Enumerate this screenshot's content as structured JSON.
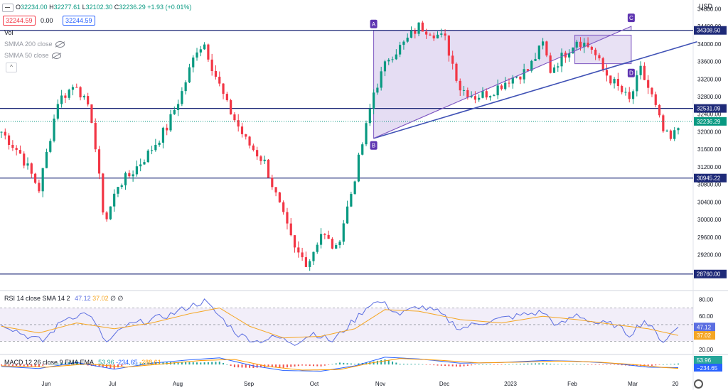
{
  "header": {
    "ohlc_prefix_o": "O",
    "open": "32234.00",
    "ohlc_prefix_h": "H",
    "high": "32277.61",
    "ohlc_prefix_l": "L",
    "low": "32102.30",
    "ohlc_prefix_c": "C",
    "close": "32236.29",
    "change": "+1.93 (+0.01%)",
    "bid": "32244.59",
    "spread": "0.00",
    "ask": "32244.59",
    "currency": "USD"
  },
  "legend": {
    "vol": "Vol",
    "sma200": "SMMA 200 close",
    "sma50": "SMMA 50 close",
    "fold_glyph": "^"
  },
  "colors": {
    "up": "#089981",
    "down": "#f23645",
    "level": "#1e2a78",
    "pattern_fill": "rgba(126,87,194,0.20)",
    "pattern_line": "#7e57c2",
    "rsi": "#5b6ee1",
    "rsi_ma": "#f5a623",
    "macd": "#2962ff",
    "signal": "#ff9800"
  },
  "chart_data": [
    {
      "type": "candlestick",
      "title": "",
      "y_axis": {
        "range": [
          28400,
          35000
        ],
        "ticks": [
          "34800.00",
          "34400.00",
          "34000.00",
          "33600.00",
          "33200.00",
          "32800.00",
          "32400.00",
          "32000.00",
          "31600.00",
          "31200.00",
          "30800.00",
          "30400.00",
          "30000.00",
          "29600.00",
          "29200.00",
          "28800.00"
        ]
      },
      "x_axis": {
        "labels": [
          "Jun",
          "Jul",
          "Aug",
          "Sep",
          "Oct",
          "Nov",
          "Dec",
          "2023",
          "Feb",
          "Mar",
          "20"
        ]
      },
      "horizontal_levels": [
        {
          "value": 34308.5,
          "label": "34308.50"
        },
        {
          "value": 32531.09,
          "label": "32531.09"
        },
        {
          "value": 30945.22,
          "label": "30945.22"
        },
        {
          "value": 28760.0,
          "label": "28760.00"
        }
      ],
      "last_price": {
        "value": 32236.29,
        "label": "32236.29"
      },
      "anchors": [
        {
          "x": 0,
          "y": 32000
        },
        {
          "x": 10,
          "y": 31500
        },
        {
          "x": 20,
          "y": 30700
        },
        {
          "x": 30,
          "y": 32700
        },
        {
          "x": 40,
          "y": 33100
        },
        {
          "x": 48,
          "y": 32300
        },
        {
          "x": 55,
          "y": 29900
        },
        {
          "x": 62,
          "y": 30800
        },
        {
          "x": 68,
          "y": 31000
        },
        {
          "x": 78,
          "y": 31500
        },
        {
          "x": 88,
          "y": 32100
        },
        {
          "x": 96,
          "y": 32900
        },
        {
          "x": 104,
          "y": 33900
        },
        {
          "x": 108,
          "y": 34000
        },
        {
          "x": 112,
          "y": 33500
        },
        {
          "x": 120,
          "y": 32600
        },
        {
          "x": 130,
          "y": 31800
        },
        {
          "x": 140,
          "y": 31300
        },
        {
          "x": 148,
          "y": 30300
        },
        {
          "x": 156,
          "y": 29300
        },
        {
          "x": 163,
          "y": 29000
        },
        {
          "x": 170,
          "y": 29700
        },
        {
          "x": 178,
          "y": 29300
        },
        {
          "x": 186,
          "y": 30600
        },
        {
          "x": 194,
          "y": 32100
        },
        {
          "x": 198,
          "y": 32900
        },
        {
          "x": 206,
          "y": 33700
        },
        {
          "x": 214,
          "y": 34000
        },
        {
          "x": 222,
          "y": 34400
        },
        {
          "x": 228,
          "y": 34300
        },
        {
          "x": 236,
          "y": 34100
        },
        {
          "x": 244,
          "y": 33000
        },
        {
          "x": 252,
          "y": 32800
        },
        {
          "x": 260,
          "y": 32900
        },
        {
          "x": 270,
          "y": 33200
        },
        {
          "x": 280,
          "y": 33400
        },
        {
          "x": 288,
          "y": 34000
        },
        {
          "x": 292,
          "y": 33400
        },
        {
          "x": 298,
          "y": 33700
        },
        {
          "x": 306,
          "y": 34100
        },
        {
          "x": 314,
          "y": 33900
        },
        {
          "x": 320,
          "y": 33400
        },
        {
          "x": 328,
          "y": 33000
        },
        {
          "x": 334,
          "y": 32700
        },
        {
          "x": 340,
          "y": 33400
        },
        {
          "x": 346,
          "y": 32800
        },
        {
          "x": 352,
          "y": 32000
        },
        {
          "x": 356,
          "y": 31800
        },
        {
          "x": 360,
          "y": 32100
        }
      ],
      "pattern_points": {
        "A": {
          "x": 198,
          "y": 34308
        },
        "B": {
          "x": 198,
          "y": 31850
        },
        "C": {
          "x": 335,
          "y": 34400
        },
        "D": {
          "x": 335,
          "y": 33500
        }
      },
      "trendline_end": {
        "x": 370,
        "y": 34050
      }
    },
    {
      "type": "line",
      "title": "",
      "series_label": "RSI 14 close SMA 14 2",
      "rsi_value": "47.12",
      "sma_value": "37.02",
      "nan_glyphs": "∅ ∅",
      "y_range": [
        15,
        90
      ],
      "ticks": [
        "80.00",
        "60.00",
        "40.00",
        "20.00"
      ],
      "band": [
        30,
        70
      ],
      "rsi_points": [
        {
          "x": 0,
          "y": 52
        },
        {
          "x": 12,
          "y": 38
        },
        {
          "x": 22,
          "y": 30
        },
        {
          "x": 34,
          "y": 58
        },
        {
          "x": 46,
          "y": 64
        },
        {
          "x": 56,
          "y": 28
        },
        {
          "x": 66,
          "y": 48
        },
        {
          "x": 78,
          "y": 55
        },
        {
          "x": 90,
          "y": 62
        },
        {
          "x": 100,
          "y": 72
        },
        {
          "x": 108,
          "y": 78
        },
        {
          "x": 116,
          "y": 60
        },
        {
          "x": 126,
          "y": 38
        },
        {
          "x": 136,
          "y": 30
        },
        {
          "x": 146,
          "y": 35
        },
        {
          "x": 156,
          "y": 28
        },
        {
          "x": 166,
          "y": 40
        },
        {
          "x": 176,
          "y": 30
        },
        {
          "x": 188,
          "y": 56
        },
        {
          "x": 196,
          "y": 75
        },
        {
          "x": 202,
          "y": 77
        },
        {
          "x": 212,
          "y": 62
        },
        {
          "x": 222,
          "y": 72
        },
        {
          "x": 232,
          "y": 65
        },
        {
          "x": 244,
          "y": 45
        },
        {
          "x": 254,
          "y": 52
        },
        {
          "x": 266,
          "y": 57
        },
        {
          "x": 278,
          "y": 62
        },
        {
          "x": 288,
          "y": 65
        },
        {
          "x": 296,
          "y": 48
        },
        {
          "x": 306,
          "y": 62
        },
        {
          "x": 316,
          "y": 52
        },
        {
          "x": 326,
          "y": 50
        },
        {
          "x": 334,
          "y": 38
        },
        {
          "x": 342,
          "y": 55
        },
        {
          "x": 352,
          "y": 30
        },
        {
          "x": 360,
          "y": 47
        }
      ],
      "sma_points": [
        {
          "x": 0,
          "y": 48
        },
        {
          "x": 20,
          "y": 40
        },
        {
          "x": 40,
          "y": 52
        },
        {
          "x": 60,
          "y": 45
        },
        {
          "x": 80,
          "y": 52
        },
        {
          "x": 100,
          "y": 63
        },
        {
          "x": 116,
          "y": 70
        },
        {
          "x": 132,
          "y": 48
        },
        {
          "x": 150,
          "y": 34
        },
        {
          "x": 170,
          "y": 36
        },
        {
          "x": 188,
          "y": 45
        },
        {
          "x": 204,
          "y": 68
        },
        {
          "x": 222,
          "y": 66
        },
        {
          "x": 244,
          "y": 56
        },
        {
          "x": 266,
          "y": 52
        },
        {
          "x": 288,
          "y": 60
        },
        {
          "x": 306,
          "y": 56
        },
        {
          "x": 326,
          "y": 50
        },
        {
          "x": 344,
          "y": 45
        },
        {
          "x": 360,
          "y": 37
        }
      ]
    },
    {
      "type": "bar",
      "title": "",
      "series_label": "MACD 12 26 close 9 EMA EMA",
      "histogram_value": "53.96",
      "macd_value": "-234.65",
      "signal_value": "-288.61",
      "axis_macd_label": "−234.65",
      "y_range": [
        -900,
        700
      ],
      "macd_points": [
        {
          "x": 0,
          "y": -150
        },
        {
          "x": 20,
          "y": -300
        },
        {
          "x": 40,
          "y": 150
        },
        {
          "x": 60,
          "y": -350
        },
        {
          "x": 80,
          "y": 100
        },
        {
          "x": 100,
          "y": 350
        },
        {
          "x": 116,
          "y": 500
        },
        {
          "x": 134,
          "y": -100
        },
        {
          "x": 150,
          "y": -450
        },
        {
          "x": 170,
          "y": -500
        },
        {
          "x": 188,
          "y": -100
        },
        {
          "x": 204,
          "y": 550
        },
        {
          "x": 222,
          "y": 420
        },
        {
          "x": 244,
          "y": 100
        },
        {
          "x": 266,
          "y": 150
        },
        {
          "x": 288,
          "y": 300
        },
        {
          "x": 306,
          "y": 250
        },
        {
          "x": 326,
          "y": 80
        },
        {
          "x": 344,
          "y": -200
        },
        {
          "x": 360,
          "y": -235
        }
      ],
      "signal_points": [
        {
          "x": 0,
          "y": -100
        },
        {
          "x": 24,
          "y": -200
        },
        {
          "x": 46,
          "y": 50
        },
        {
          "x": 66,
          "y": -200
        },
        {
          "x": 86,
          "y": 50
        },
        {
          "x": 106,
          "y": 300
        },
        {
          "x": 124,
          "y": 380
        },
        {
          "x": 142,
          "y": -150
        },
        {
          "x": 160,
          "y": -420
        },
        {
          "x": 180,
          "y": -380
        },
        {
          "x": 196,
          "y": 100
        },
        {
          "x": 212,
          "y": 450
        },
        {
          "x": 232,
          "y": 330
        },
        {
          "x": 254,
          "y": 120
        },
        {
          "x": 276,
          "y": 180
        },
        {
          "x": 296,
          "y": 260
        },
        {
          "x": 316,
          "y": 190
        },
        {
          "x": 336,
          "y": 0
        },
        {
          "x": 352,
          "y": -220
        },
        {
          "x": 360,
          "y": -289
        }
      ]
    }
  ]
}
